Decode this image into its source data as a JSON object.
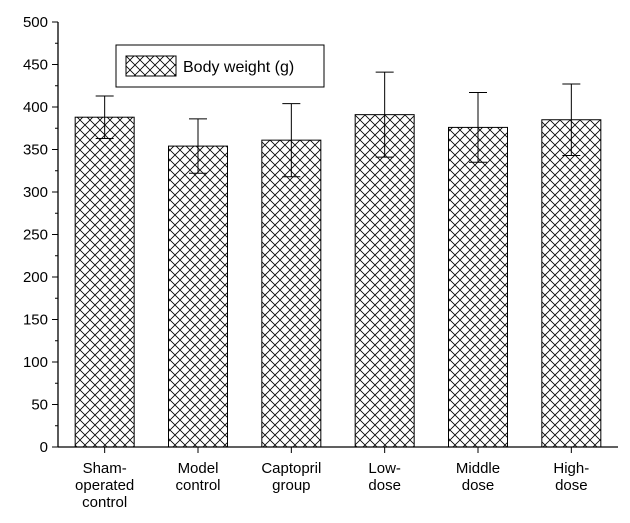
{
  "chart_data": {
    "type": "bar",
    "categories": [
      [
        "Sham-",
        "operated",
        "control"
      ],
      [
        "Model",
        "control"
      ],
      [
        "Captopril",
        "group"
      ],
      [
        "Low-",
        "dose"
      ],
      [
        "Middle",
        "dose"
      ],
      [
        "High-",
        "dose"
      ]
    ],
    "series": [
      {
        "name": "Body weight (g)",
        "values": [
          388,
          354,
          361,
          391,
          376,
          385
        ],
        "errors": [
          25,
          32,
          43,
          50,
          41,
          42
        ]
      }
    ],
    "ylim": [
      0,
      500
    ],
    "yticks": [
      0,
      50,
      100,
      150,
      200,
      250,
      300,
      350,
      400,
      450,
      500
    ],
    "grid": false,
    "legend": "top-left",
    "fill_pattern": "crosshatch",
    "colors": {
      "bar_fill": "#ffffff",
      "hatch": "#000000",
      "axis": "#000000"
    }
  }
}
